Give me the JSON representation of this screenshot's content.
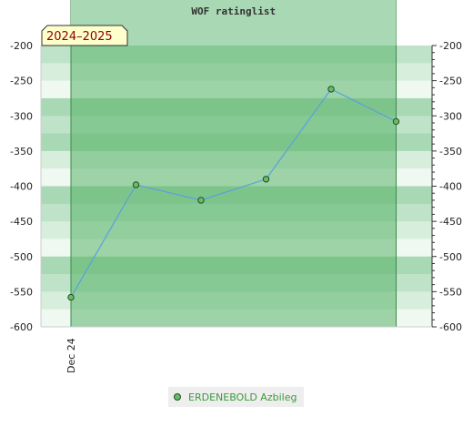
{
  "chart_data": {
    "type": "line",
    "title": "WOF ratinglist",
    "period_badge": "2024–2025",
    "x_tick_labels": [
      "Dec 24"
    ],
    "ylim": [
      -600,
      -200
    ],
    "y_ticks": [
      -200,
      -250,
      -300,
      -350,
      -400,
      -450,
      -500,
      -550,
      -600
    ],
    "y_tick_labels": [
      "-200",
      "-250",
      "-300",
      "-350",
      "-400",
      "-450",
      "-500",
      "-550",
      "-600"
    ],
    "series": [
      {
        "name": "ERDENEBOLD Azbileg",
        "x": [
          0,
          1,
          2,
          3,
          4,
          5
        ],
        "values": [
          -558,
          -398,
          -420,
          -390,
          -262,
          -308
        ]
      }
    ],
    "legend_position": "bottom",
    "colors": {
      "line": "#5aa0e0",
      "marker_fill": "#6aba6a",
      "marker_stroke": "#1f4f1f",
      "highlight_band": "#5ab46a",
      "title_band": "#a8d8b4",
      "badge_bg": "#ffffcc",
      "badge_text": "#8b0000",
      "legend_text": "#3a9a3a"
    }
  }
}
